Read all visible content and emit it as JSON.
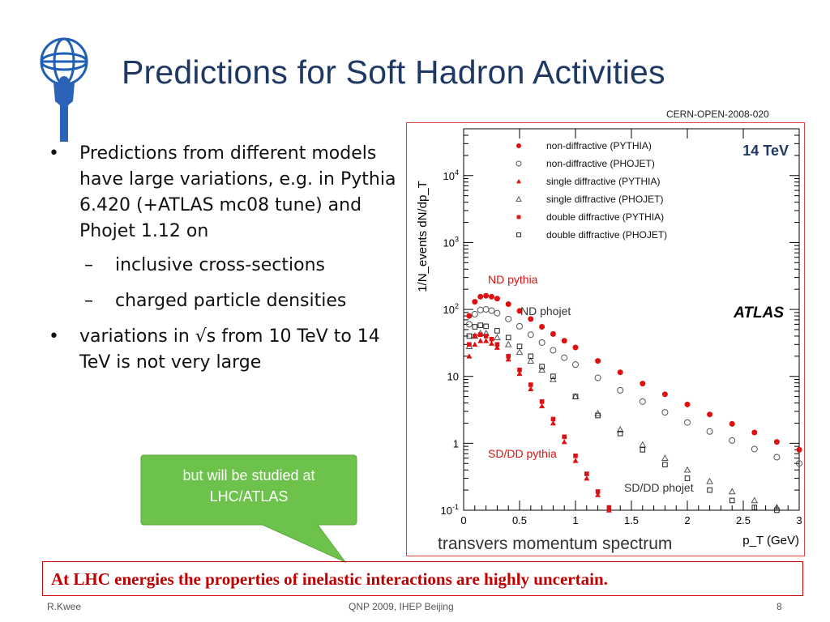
{
  "slide": {
    "title": "Predictions for Soft Hadron Activities",
    "reference": "CERN-OPEN-2008-020",
    "bullets": {
      "b1": "Predictions from different models have large variations, e.g. in Pythia 6.420 (+ATLAS mc08 tune) and Phojet 1.12 on",
      "b1a": "inclusive cross-sections",
      "b1b": "charged particle densities",
      "b2": "variations in √s from 10 TeV to 14 TeV is not very large"
    },
    "callout": "but will be studied at LHC/ATLAS",
    "banner": "At LHC energies the properties of inelastic interactions are highly uncertain.",
    "footer": {
      "left": "R.Kwee",
      "center": "QNP 2009, IHEP Beijing",
      "right": "8"
    },
    "colors": {
      "title": "#1f3864",
      "banner": "#c00000",
      "callout": "#6cc24a",
      "pythia": "#dd1111",
      "phojet": "#222222"
    }
  },
  "plot": {
    "energy_label": "14 TeV",
    "atlas_label": "ATLAS",
    "y_label_text": "1/N_events dN/dp_T",
    "x_label_text": "p_T (GeV)",
    "caption": "transvers momentum spectrum",
    "annotations": {
      "nd_pythia": "ND pythia",
      "nd_phojet": "ND phojet",
      "sd_dd_pythia": "SD/DD pythia",
      "sd_dd_phojet": "SD/DD phojet"
    },
    "legend": [
      {
        "label": "non-diffractive (PYTHIA)",
        "marker": "filled-circle",
        "color": "#dd1111"
      },
      {
        "label": "non-diffractive (PHOJET)",
        "marker": "open-circle",
        "color": "#555555"
      },
      {
        "label": "single diffractive (PYTHIA)",
        "marker": "filled-triangle",
        "color": "#dd1111"
      },
      {
        "label": "single diffractive (PHOJET)",
        "marker": "open-triangle",
        "color": "#555555"
      },
      {
        "label": "double diffractive (PYTHIA)",
        "marker": "filled-square",
        "color": "#dd1111"
      },
      {
        "label": "double diffractive (PHOJET)",
        "marker": "open-square",
        "color": "#222222"
      }
    ]
  },
  "chart_data": {
    "type": "scatter",
    "x_label": "p_T (GeV)",
    "y_label": "1/N_events dN/dp_T",
    "y_scale": "log",
    "xlim": [
      0,
      3
    ],
    "ylim": [
      0.1,
      50000
    ],
    "x_ticks": [
      "0",
      "0.5",
      "1",
      "1.5",
      "2",
      "2.5",
      "3"
    ],
    "y_ticks": [
      {
        "value": 0.1,
        "label": "10^-1"
      },
      {
        "value": 1,
        "label": "1"
      },
      {
        "value": 10,
        "label": "10"
      },
      {
        "value": 100,
        "label": "10^2"
      },
      {
        "value": 1000,
        "label": "10^3"
      },
      {
        "value": 10000,
        "label": "10^4"
      }
    ],
    "legend_position": "top",
    "series": [
      {
        "name": "non-diffractive (PYTHIA)",
        "x": [
          0.05,
          0.1,
          0.15,
          0.2,
          0.25,
          0.3,
          0.4,
          0.5,
          0.6,
          0.7,
          0.8,
          0.9,
          1.0,
          1.2,
          1.4,
          1.6,
          1.8,
          2.0,
          2.2,
          2.4,
          2.6,
          2.8,
          3.0
        ],
        "y": [
          80,
          130,
          155,
          160,
          155,
          145,
          120,
          95,
          72,
          55,
          43,
          34,
          27,
          17,
          11.5,
          7.8,
          5.4,
          3.8,
          2.7,
          1.95,
          1.45,
          1.05,
          0.8
        ]
      },
      {
        "name": "non-diffractive (PHOJET)",
        "x": [
          0.05,
          0.1,
          0.15,
          0.2,
          0.25,
          0.3,
          0.4,
          0.5,
          0.6,
          0.7,
          0.8,
          0.9,
          1.0,
          1.2,
          1.4,
          1.6,
          1.8,
          2.0,
          2.2,
          2.4,
          2.6,
          2.8,
          3.0
        ],
        "y": [
          60,
          85,
          98,
          100,
          96,
          88,
          72,
          56,
          42,
          32,
          24.5,
          19,
          15,
          9.5,
          6.2,
          4.2,
          2.9,
          2.05,
          1.5,
          1.1,
          0.82,
          0.62,
          0.5
        ]
      },
      {
        "name": "single diffractive (PYTHIA)",
        "x": [
          0.05,
          0.1,
          0.15,
          0.2,
          0.25,
          0.3,
          0.4,
          0.5,
          0.6,
          0.7,
          0.8,
          0.9,
          1.0,
          1.1,
          1.2,
          1.3
        ],
        "y": [
          20,
          30,
          34,
          34,
          31,
          27,
          18,
          11,
          6.5,
          3.6,
          2.0,
          1.05,
          0.55,
          0.3,
          0.17,
          0.1
        ]
      },
      {
        "name": "single diffractive (PHOJET)",
        "x": [
          0.05,
          0.1,
          0.15,
          0.2,
          0.3,
          0.4,
          0.5,
          0.6,
          0.7,
          0.8,
          1.0,
          1.2,
          1.4,
          1.6,
          1.8,
          2.0,
          2.2,
          2.4,
          2.6,
          2.8
        ],
        "y": [
          28,
          40,
          44,
          44,
          38,
          30,
          23,
          17,
          12.5,
          9,
          5,
          2.8,
          1.6,
          0.95,
          0.6,
          0.4,
          0.27,
          0.19,
          0.14,
          0.11
        ]
      },
      {
        "name": "double diffractive (PYTHIA)",
        "x": [
          0.05,
          0.1,
          0.15,
          0.2,
          0.25,
          0.3,
          0.4,
          0.5,
          0.6,
          0.7,
          0.8,
          0.9,
          1.0,
          1.1,
          1.2,
          1.3
        ],
        "y": [
          30,
          40,
          42,
          40,
          36,
          30,
          20,
          12.5,
          7.5,
          4.2,
          2.3,
          1.25,
          0.65,
          0.35,
          0.19,
          0.11
        ]
      },
      {
        "name": "double diffractive (PHOJET)",
        "x": [
          0.05,
          0.1,
          0.15,
          0.2,
          0.3,
          0.4,
          0.5,
          0.6,
          0.7,
          0.8,
          1.0,
          1.2,
          1.4,
          1.6,
          1.8,
          2.0,
          2.2,
          2.4,
          2.6,
          2.8
        ],
        "y": [
          40,
          55,
          58,
          56,
          48,
          38,
          28,
          20,
          14,
          10,
          5,
          2.6,
          1.4,
          0.8,
          0.48,
          0.3,
          0.2,
          0.14,
          0.11,
          0.1
        ]
      }
    ]
  }
}
